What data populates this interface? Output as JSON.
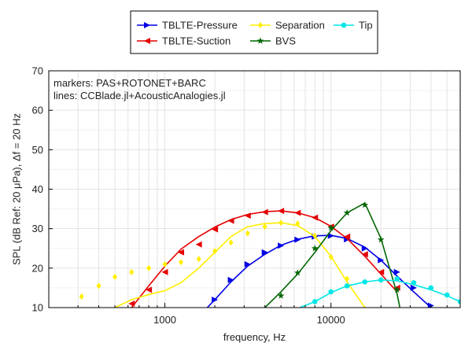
{
  "chart_data": {
    "type": "line",
    "xlabel": "frequency, Hz",
    "ylabel": "SPL (dB Ref: 20 μPa), Δf = 20 Hz",
    "xscale": "log",
    "xlim": [
      200,
      60000
    ],
    "ylim": [
      10,
      70
    ],
    "x_ticks": [
      {
        "value": 1000,
        "label": "1000"
      },
      {
        "value": 10000,
        "label": "10000"
      }
    ],
    "y_ticks": [
      10,
      20,
      30,
      40,
      50,
      60,
      70
    ],
    "grid": true,
    "legend_placement": "top-center, outside plot",
    "annotations": [
      "markers: PAS+ROTONET+BARC",
      "lines: CCBlade.jl+AcousticAnalogies.jl"
    ],
    "series": [
      {
        "name": "TBLTE-Pressure",
        "color": "#0000e6",
        "marker": "triangle-right",
        "line": [
          [
            1800,
            10
          ],
          [
            2000,
            12
          ],
          [
            2500,
            16.5
          ],
          [
            3150,
            20.5
          ],
          [
            4000,
            23.5
          ],
          [
            5000,
            25.8
          ],
          [
            6300,
            27.3
          ],
          [
            8000,
            28.2
          ],
          [
            10000,
            28.3
          ],
          [
            12500,
            27.5
          ],
          [
            16000,
            25.3
          ],
          [
            20000,
            22
          ],
          [
            25000,
            18
          ],
          [
            31500,
            14
          ],
          [
            40000,
            10
          ]
        ],
        "markers": [
          [
            2000,
            12
          ],
          [
            2500,
            17
          ],
          [
            3150,
            21
          ],
          [
            4000,
            24
          ],
          [
            5000,
            25.7
          ],
          [
            6300,
            27.2
          ],
          [
            8000,
            28
          ],
          [
            10000,
            28.2
          ],
          [
            12500,
            27.3
          ],
          [
            16000,
            25
          ],
          [
            20000,
            22
          ],
          [
            25000,
            19
          ],
          [
            31500,
            15
          ],
          [
            40000,
            10.5
          ]
        ]
      },
      {
        "name": "TBLTE-Suction",
        "color": "#e60000",
        "marker": "triangle-left",
        "line": [
          [
            630,
            10
          ],
          [
            800,
            15.5
          ],
          [
            1000,
            20.5
          ],
          [
            1250,
            24.8
          ],
          [
            1600,
            28
          ],
          [
            2000,
            30.4
          ],
          [
            2500,
            32.3
          ],
          [
            3150,
            33.6
          ],
          [
            4000,
            34.3
          ],
          [
            5000,
            34.5
          ],
          [
            6300,
            34
          ],
          [
            8000,
            32.8
          ],
          [
            10000,
            30.6
          ],
          [
            12500,
            27.5
          ],
          [
            16000,
            23
          ],
          [
            20000,
            18.5
          ],
          [
            25000,
            14
          ]
        ],
        "markers": [
          [
            630,
            11
          ],
          [
            800,
            14.5
          ],
          [
            1000,
            19
          ],
          [
            1250,
            24
          ],
          [
            1600,
            26
          ],
          [
            2000,
            29.8
          ],
          [
            2500,
            32
          ],
          [
            3150,
            33.3
          ],
          [
            4000,
            34.2
          ],
          [
            5000,
            34.5
          ],
          [
            6300,
            34
          ],
          [
            8000,
            32.8
          ],
          [
            10000,
            30.5
          ],
          [
            12500,
            28
          ],
          [
            16000,
            23.5
          ],
          [
            20000,
            19
          ],
          [
            25000,
            15
          ]
        ]
      },
      {
        "name": "Separation",
        "color": "#ffee00",
        "marker": "diamond",
        "line": [
          [
            500,
            10
          ],
          [
            630,
            12
          ],
          [
            800,
            13.3
          ],
          [
            1000,
            14.3
          ],
          [
            1250,
            16.3
          ],
          [
            1600,
            20
          ],
          [
            2000,
            24
          ],
          [
            2500,
            28
          ],
          [
            3150,
            30.5
          ],
          [
            4000,
            31.3
          ],
          [
            5000,
            31.5
          ],
          [
            6300,
            30.8
          ],
          [
            8000,
            28
          ],
          [
            10000,
            23
          ],
          [
            12500,
            16.5
          ],
          [
            16000,
            10
          ]
        ],
        "markers": [
          [
            315,
            12.8
          ],
          [
            400,
            15.5
          ],
          [
            500,
            17.8
          ],
          [
            630,
            19
          ],
          [
            800,
            20
          ],
          [
            1000,
            21
          ],
          [
            1250,
            21.5
          ],
          [
            1600,
            22.3
          ],
          [
            2000,
            24.3
          ],
          [
            2500,
            26.5
          ],
          [
            3150,
            28.8
          ],
          [
            4000,
            30.5
          ],
          [
            5000,
            31.5
          ],
          [
            6300,
            31.3
          ],
          [
            8000,
            28.2
          ],
          [
            10000,
            22.8
          ],
          [
            12500,
            17.3
          ]
        ]
      },
      {
        "name": "BVS",
        "color": "#006600",
        "marker": "star",
        "line": [
          [
            4000,
            10
          ],
          [
            5000,
            14
          ],
          [
            6300,
            18.5
          ],
          [
            8000,
            24
          ],
          [
            10000,
            29.5
          ],
          [
            12500,
            34
          ],
          [
            16000,
            36.5
          ],
          [
            20000,
            27.5
          ],
          [
            25000,
            13.5
          ],
          [
            26000,
            10
          ]
        ],
        "markers": [
          [
            5000,
            13
          ],
          [
            6300,
            18.8
          ],
          [
            8000,
            25
          ],
          [
            10000,
            30.2
          ],
          [
            12500,
            34
          ],
          [
            16000,
            36
          ],
          [
            20000,
            27.2
          ],
          [
            25000,
            14.5
          ]
        ]
      },
      {
        "name": "Tip",
        "color": "#00e6e6",
        "marker": "circle",
        "line": [
          [
            6500,
            10
          ],
          [
            8000,
            11.5
          ],
          [
            10000,
            13.8
          ],
          [
            12500,
            15.5
          ],
          [
            16000,
            16.5
          ],
          [
            20000,
            17
          ],
          [
            25000,
            16.8
          ],
          [
            31500,
            15.8
          ],
          [
            40000,
            14.5
          ],
          [
            50000,
            13
          ],
          [
            60000,
            11.5
          ]
        ],
        "markers": [
          [
            8000,
            11.5
          ],
          [
            10000,
            14
          ],
          [
            12500,
            15.5
          ],
          [
            16000,
            16.5
          ],
          [
            20000,
            17
          ],
          [
            25000,
            17.3
          ],
          [
            31500,
            16.3
          ],
          [
            40000,
            15
          ],
          [
            50000,
            13.2
          ],
          [
            60000,
            11.5
          ]
        ]
      }
    ]
  }
}
